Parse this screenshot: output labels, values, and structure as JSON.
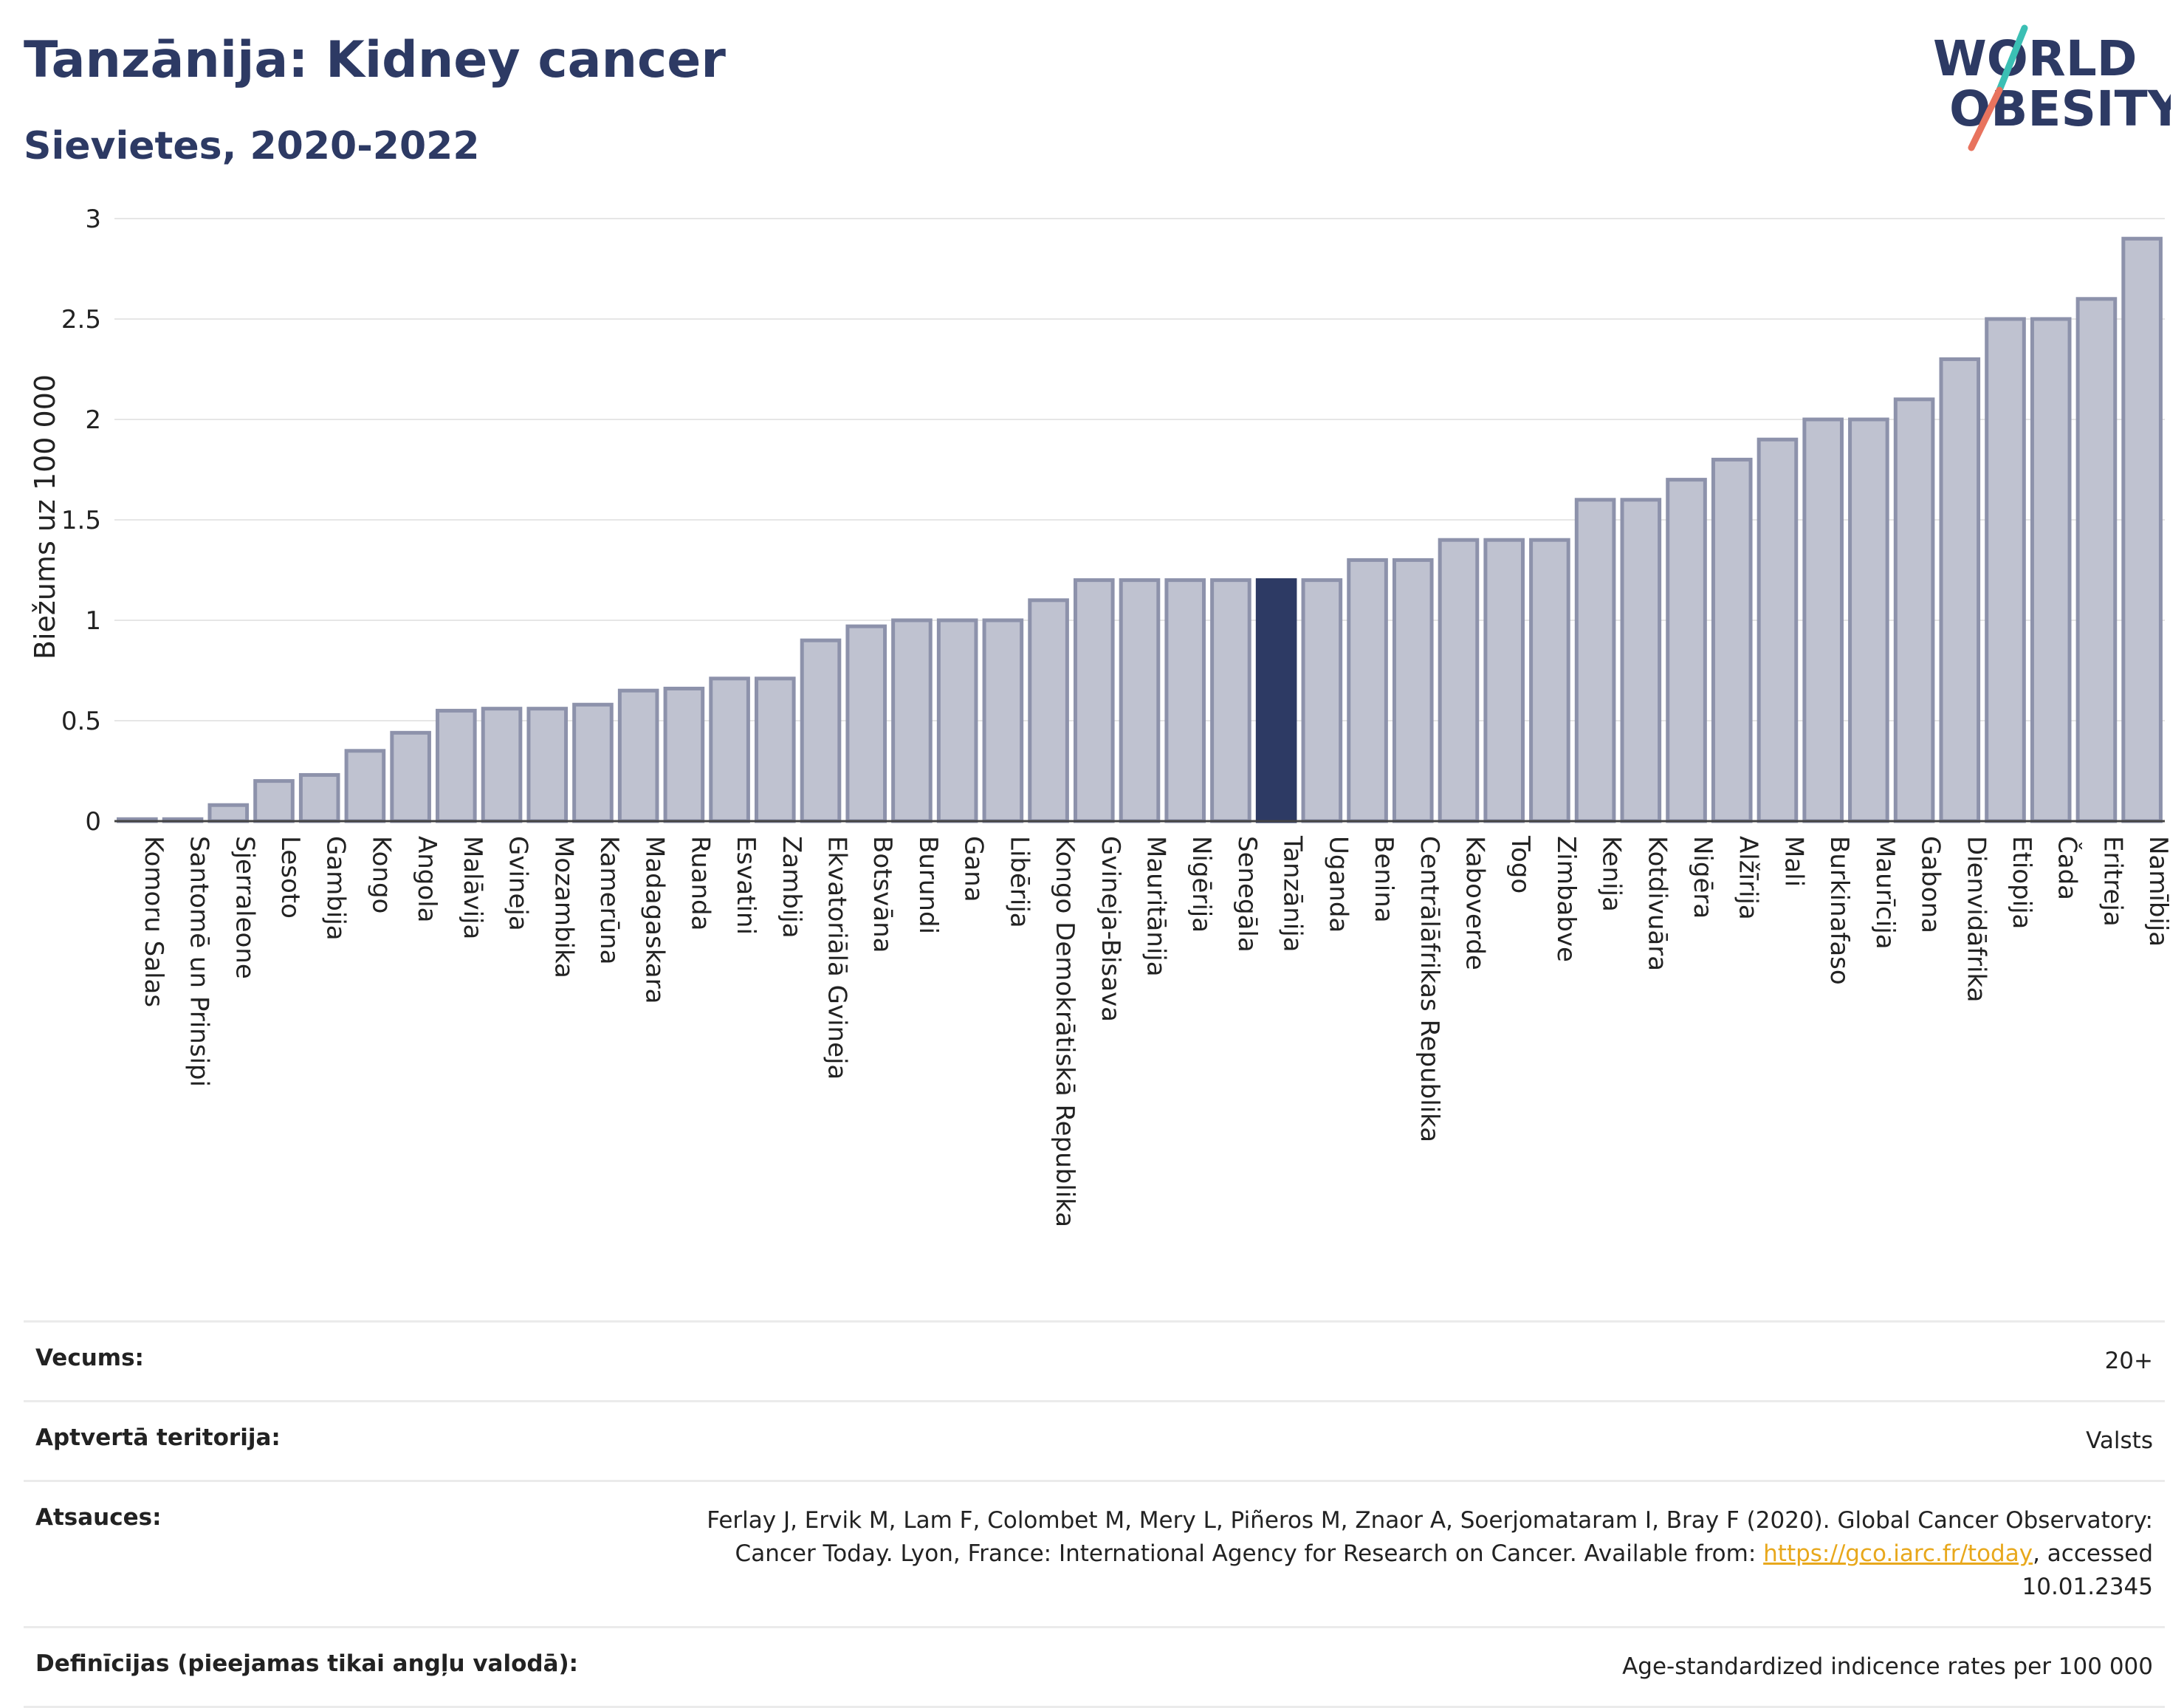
{
  "header": {
    "title": "Tanzānija: Kidney cancer",
    "subtitle": "Sievietes, 2020-2022",
    "logo_line1": "WORLD",
    "logo_line2": "OBESITY"
  },
  "chart_data": {
    "type": "bar",
    "ylabel": "Biežums uz 100 000",
    "xlabel": "",
    "ylim": [
      0,
      3
    ],
    "yticks": [
      0,
      0.5,
      1,
      1.5,
      2,
      2.5,
      3
    ],
    "grid": true,
    "highlight": "Tanzānija",
    "colors": {
      "bar": "#bfc2d0",
      "bar_edge": "#8d92ab",
      "highlight": "#2d3a64"
    },
    "categories": [
      "Komoru Salas",
      "Santomē un Prinsipi",
      "Sjerraleone",
      "Lesoto",
      "Gambija",
      "Kongo",
      "Angola",
      "Malāvija",
      "Gvineja",
      "Mozambika",
      "Kamerūna",
      "Madagaskara",
      "Ruanda",
      "Esvatini",
      "Zambija",
      "Ekvatoriālā Gvineja",
      "Botsvāna",
      "Burundi",
      "Gana",
      "Libērija",
      "Kongo Demokrātiskā Republika",
      "Gvineja-Bisava",
      "Mauritānija",
      "Nigērija",
      "Senegāla",
      "Tanzānija",
      "Uganda",
      "Benina",
      "Centrālāfrikas Republika",
      "Kaboverde",
      "Togo",
      "Zimbabve",
      "Kenija",
      "Kotdivuāra",
      "Nigēra",
      "Alžīrija",
      "Mali",
      "Burkinafaso",
      "Maurīcija",
      "Gabona",
      "Dienvidāfrika",
      "Etiopija",
      "Čada",
      "Eritreja",
      "Namībija"
    ],
    "values": [
      0.01,
      0.01,
      0.08,
      0.2,
      0.23,
      0.35,
      0.44,
      0.55,
      0.56,
      0.56,
      0.58,
      0.65,
      0.66,
      0.71,
      0.71,
      0.9,
      0.97,
      1.0,
      1.0,
      1.0,
      1.1,
      1.2,
      1.2,
      1.2,
      1.2,
      1.2,
      1.2,
      1.3,
      1.3,
      1.4,
      1.4,
      1.4,
      1.6,
      1.6,
      1.7,
      1.8,
      1.9,
      2.0,
      2.0,
      2.1,
      2.3,
      2.5,
      2.5,
      2.6,
      2.9
    ]
  },
  "info": {
    "age_label": "Vecums:",
    "age_value": "20+",
    "coverage_label": "Aptvertā teritorija:",
    "coverage_value": "Valsts",
    "refs_label": "Atsauces:",
    "refs_text_before": "Ferlay J, Ervik M, Lam F, Colombet M, Mery L, Piñeros M, Znaor A, Soerjomataram I, Bray F (2020). Global Cancer Observatory: Cancer Today. Lyon, France: International Agency for Research on Cancer. Available from: ",
    "refs_link": "https://gco.iarc.fr/today",
    "refs_text_after": ", accessed 10.01.2345",
    "defs_label": "Definīcijas (pieejamas tikai angļu valodā):",
    "defs_value": "Age-standardized indicence rates per 100 000"
  }
}
